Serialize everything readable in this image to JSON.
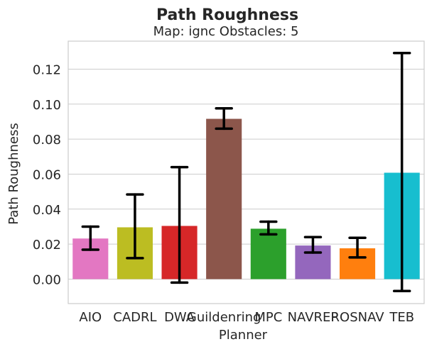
{
  "chart_data": {
    "type": "bar",
    "title": "Path Roughness",
    "subtitle": "Map: ignc Obstacles: 5",
    "xlabel": "Planner",
    "ylabel": "Path Roughness",
    "ylim": [
      -0.014,
      0.136
    ],
    "yticks": [
      0.0,
      0.02,
      0.04,
      0.06,
      0.08,
      0.1,
      0.12
    ],
    "ytick_labels": [
      "0.00",
      "0.02",
      "0.04",
      "0.06",
      "0.08",
      "0.10",
      "0.12"
    ],
    "grid": true,
    "categories": [
      "AIO",
      "CADRL",
      "DWA",
      "Guildenring",
      "MPC",
      "NAVREP",
      "ROSNAV",
      "TEB"
    ],
    "values": [
      0.0232,
      0.0296,
      0.0304,
      0.0916,
      0.0288,
      0.0192,
      0.0176,
      0.0608
    ],
    "error_low": [
      0.0168,
      0.012,
      -0.002,
      0.086,
      0.0256,
      0.0152,
      0.0124,
      -0.0068
    ],
    "error_high": [
      0.03,
      0.0484,
      0.064,
      0.0976,
      0.0328,
      0.024,
      0.0236,
      0.1292
    ],
    "colors": [
      "#e377c2",
      "#bcbd22",
      "#d62728",
      "#8c564b",
      "#2ca02c",
      "#9467bd",
      "#ff7f0e",
      "#17becf"
    ]
  }
}
